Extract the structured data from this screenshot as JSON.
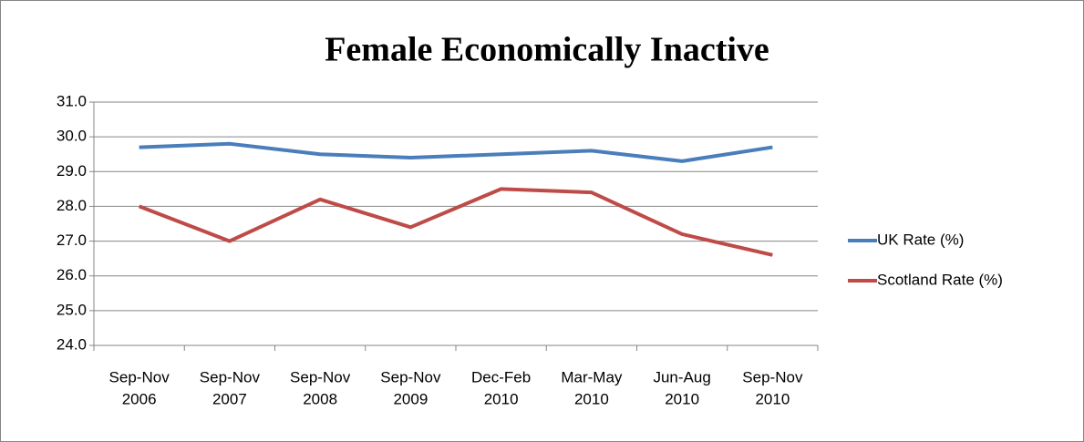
{
  "chart_data": {
    "type": "line",
    "title": "Female Economically Inactive",
    "categories": [
      [
        "Sep-Nov",
        "2006"
      ],
      [
        "Sep-Nov",
        "2007"
      ],
      [
        "Sep-Nov",
        "2008"
      ],
      [
        "Sep-Nov",
        "2009"
      ],
      [
        "Dec-Feb",
        "2010"
      ],
      [
        "Mar-May",
        "2010"
      ],
      [
        "Jun-Aug",
        "2010"
      ],
      [
        "Sep-Nov",
        "2010"
      ]
    ],
    "series": [
      {
        "name": "UK Rate (%)",
        "color": "#4a7ebb",
        "values": [
          29.7,
          29.8,
          29.5,
          29.4,
          29.5,
          29.6,
          29.3,
          29.7
        ]
      },
      {
        "name": "Scotland Rate (%)",
        "color": "#be4b48",
        "values": [
          28.0,
          27.0,
          28.2,
          27.4,
          28.5,
          28.4,
          27.2,
          26.6
        ]
      }
    ],
    "ylim": [
      24,
      31
    ],
    "yticks": [
      {
        "value": 24,
        "label": "24.0"
      },
      {
        "value": 25,
        "label": "25.0"
      },
      {
        "value": 26,
        "label": "26.0"
      },
      {
        "value": 27,
        "label": "27.0"
      },
      {
        "value": 28,
        "label": "28.0"
      },
      {
        "value": 29,
        "label": "29.0"
      },
      {
        "value": 30,
        "label": "30.0"
      },
      {
        "value": 31,
        "label": "31.0"
      }
    ],
    "grid": true,
    "legend": "right"
  }
}
